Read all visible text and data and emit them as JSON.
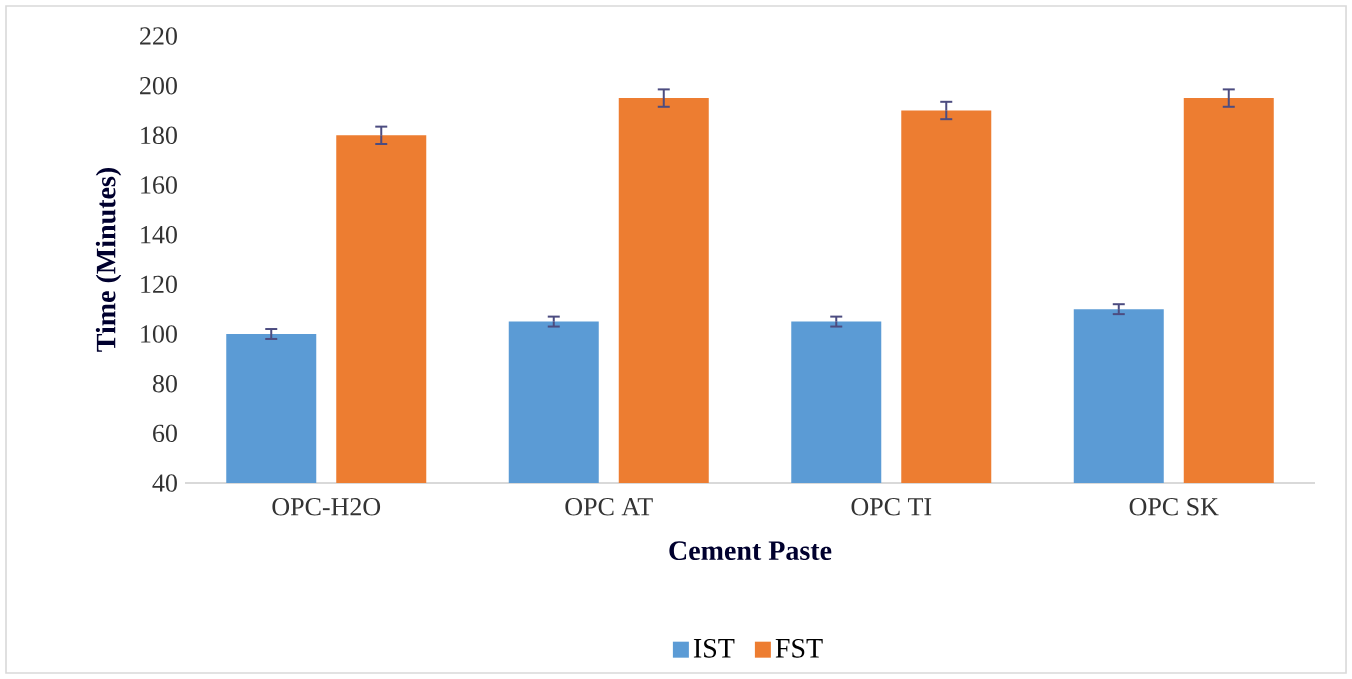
{
  "chart_data": {
    "type": "bar",
    "xlabel": "Cement Paste",
    "ylabel": "Time (Minutes)",
    "categories": [
      "OPC-H2O",
      "OPC AT",
      "OPC TI",
      "OPC SK"
    ],
    "series": [
      {
        "name": "IST",
        "color": "#5b9bd5",
        "values": [
          100,
          105,
          105,
          110
        ],
        "errors": [
          2,
          2,
          2,
          2
        ]
      },
      {
        "name": "FST",
        "color": "#ed7d31",
        "values": [
          180,
          195,
          190,
          195
        ],
        "errors": [
          3.5,
          3.5,
          3.5,
          3.5
        ]
      }
    ],
    "ylim": [
      40,
      220
    ],
    "yticks": [
      40,
      60,
      80,
      100,
      120,
      140,
      160,
      180,
      200,
      220
    ],
    "legend": "bottom"
  }
}
